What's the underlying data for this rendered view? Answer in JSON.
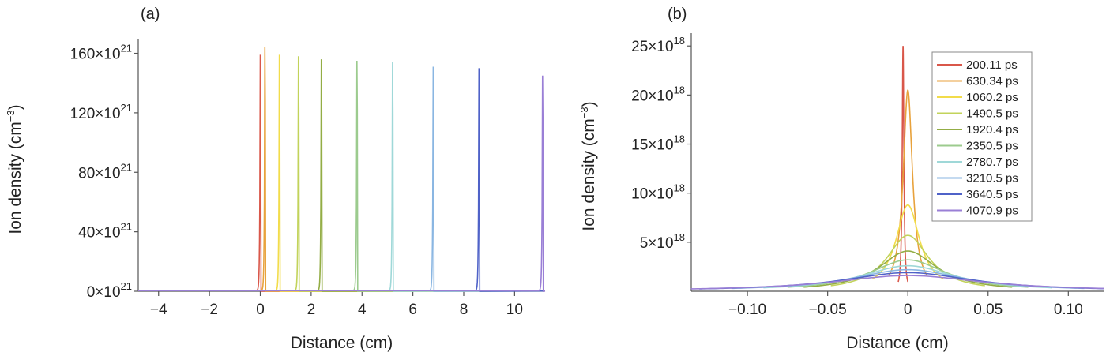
{
  "chart_data": [
    {
      "panel_label": "(a)",
      "type": "line",
      "xlabel": "Distance (cm)",
      "ylabel_text": "Ion density (cm",
      "ylabel_sup": "−3",
      "ylabel_close": ")",
      "xlim": [
        -4.8,
        11.2
      ],
      "ylim": [
        0,
        164
      ],
      "xticks": [
        -4,
        -2,
        0,
        2,
        4,
        6,
        8,
        10
      ],
      "xtick_labels": [
        "−4",
        "−2",
        "0",
        "2",
        "4",
        "6",
        "8",
        "10"
      ],
      "yticks": [
        0,
        40,
        80,
        120,
        160
      ],
      "ytick_labels": [
        "0×10",
        "40×10",
        "80×10",
        "120×10",
        "160×10"
      ],
      "ytick_exponent": "21",
      "y_scale_note": "×10^21 cm^-3",
      "series": [
        {
          "front": 0.0,
          "peak": 159,
          "color": "#d9574a"
        },
        {
          "front": 0.18,
          "peak": 164,
          "color": "#e8a23c"
        },
        {
          "front": 0.75,
          "peak": 159,
          "color": "#f2dc4a"
        },
        {
          "front": 1.5,
          "peak": 158,
          "color": "#c2d35a"
        },
        {
          "front": 2.4,
          "peak": 156,
          "color": "#93ad45"
        },
        {
          "front": 3.8,
          "peak": 155,
          "color": "#9ccb8e"
        },
        {
          "front": 5.2,
          "peak": 154,
          "color": "#9fd8d8"
        },
        {
          "front": 6.8,
          "peak": 151,
          "color": "#8ab6e2"
        },
        {
          "front": 8.6,
          "peak": 150,
          "color": "#4f62c8"
        },
        {
          "front": 11.1,
          "peak": 145,
          "color": "#9a7fd6"
        }
      ]
    },
    {
      "panel_label": "(b)",
      "type": "line",
      "xlabel": "Distance (cm)",
      "ylabel_text": "Ion density (cm",
      "ylabel_sup": "−3",
      "ylabel_close": ")",
      "xlim": [
        -0.135,
        0.122
      ],
      "ylim": [
        0,
        25.5
      ],
      "xticks": [
        -0.1,
        -0.05,
        0,
        0.05,
        0.1
      ],
      "xtick_labels": [
        "−0.10",
        "−0.05",
        "0",
        "0.05",
        "0.10"
      ],
      "yticks": [
        5,
        10,
        15,
        20,
        25
      ],
      "ytick_labels": [
        "5×10",
        "10×10",
        "15×10",
        "20×10",
        "25×10"
      ],
      "ytick_exponent": "18",
      "legend_position": "top-right",
      "series": [
        {
          "name": "200.11 ps",
          "peak": 25.0,
          "width": 0.0006,
          "halfspan": 0.003,
          "center": -0.003,
          "color": "#d9574a"
        },
        {
          "name": "630.34 ps",
          "peak": 20.5,
          "width": 0.0035,
          "halfspan": 0.012,
          "center": 0.0,
          "color": "#e8a23c"
        },
        {
          "name": "1060.2 ps",
          "peak": 8.8,
          "width": 0.009,
          "halfspan": 0.022,
          "center": 0.0,
          "color": "#f2dc4a"
        },
        {
          "name": "1490.5 ps",
          "peak": 5.7,
          "width": 0.016,
          "halfspan": 0.048,
          "center": 0.0,
          "color": "#c2d35a"
        },
        {
          "name": "1920.4 ps",
          "peak": 4.1,
          "width": 0.022,
          "halfspan": 0.065,
          "center": 0.0,
          "color": "#93ad45"
        },
        {
          "name": "2350.5 ps",
          "peak": 3.2,
          "width": 0.029,
          "halfspan": 0.075,
          "center": 0.0,
          "color": "#9ccb8e"
        },
        {
          "name": "2780.7 ps",
          "peak": 2.6,
          "width": 0.036,
          "halfspan": 0.09,
          "center": 0.0,
          "color": "#9fd8d8"
        },
        {
          "name": "3210.5 ps",
          "peak": 2.2,
          "width": 0.043,
          "halfspan": 0.11,
          "center": 0.0,
          "color": "#8ab6e2"
        },
        {
          "name": "3640.5 ps",
          "peak": 1.9,
          "width": 0.05,
          "halfspan": 0.13,
          "center": 0.0,
          "color": "#4f62c8"
        },
        {
          "name": "4070.9 ps",
          "peak": 1.6,
          "width": 0.057,
          "halfspan": 0.14,
          "center": 0.0,
          "color": "#9a7fd6"
        }
      ]
    }
  ]
}
